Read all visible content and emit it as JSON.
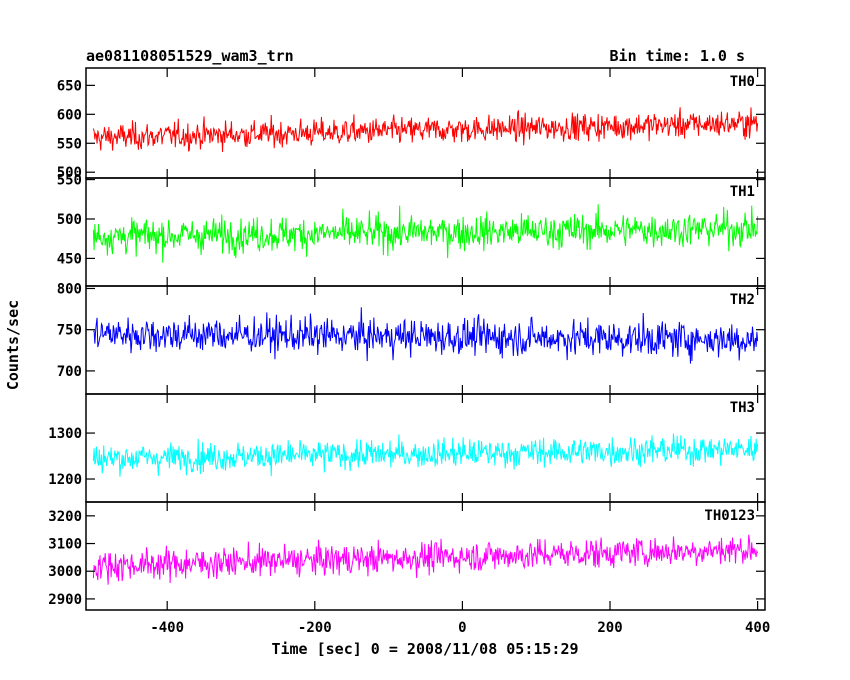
{
  "header": {
    "left_title": "ae081108051529_wam3_trn",
    "right_title": "Bin time: 1.0 s"
  },
  "axes": {
    "xlabel": "Time [sec] 0 = 2008/11/08 05:15:29",
    "ylabel": "Counts/sec"
  },
  "chart_data": {
    "type": "line",
    "x_range": [
      -510,
      410
    ],
    "x_ticks": [
      -400,
      -200,
      0,
      200,
      400
    ],
    "x_start": -500,
    "x_end": 400,
    "bin_time_s": 1.0,
    "grid": false,
    "panels": [
      {
        "name": "TH0",
        "color": "#ff0000",
        "ylim": [
          490,
          680
        ],
        "yticks": [
          500,
          550,
          600,
          650
        ],
        "mean_start": 560,
        "mean_end": 585,
        "spread": 30,
        "ymin": 490,
        "ymax": 680
      },
      {
        "name": "TH1",
        "color": "#00ff00",
        "ylim": [
          415,
          552
        ],
        "yticks": [
          450,
          500,
          550
        ],
        "mean_start": 478,
        "mean_end": 488,
        "spread": 28,
        "ymin": 415,
        "ymax": 552
      },
      {
        "name": "TH2",
        "color": "#0000ff",
        "ylim": [
          672,
          803
        ],
        "yticks": [
          700,
          750,
          800
        ],
        "mean_start": 745,
        "mean_end": 738,
        "spread": 28,
        "ymin": 672,
        "ymax": 803
      },
      {
        "name": "TH3",
        "color": "#00ffff",
        "ylim": [
          1150,
          1385
        ],
        "yticks": [
          1200,
          1300
        ],
        "mean_start": 1245,
        "mean_end": 1265,
        "spread": 40,
        "ymin": 1150,
        "ymax": 1385
      },
      {
        "name": "TH0123",
        "color": "#ff00ff",
        "ylim": [
          2860,
          3250
        ],
        "yticks": [
          2900,
          3000,
          3100,
          3200
        ],
        "mean_start": 3020,
        "mean_end": 3080,
        "spread": 70,
        "ymin": 2860,
        "ymax": 3250
      }
    ]
  }
}
